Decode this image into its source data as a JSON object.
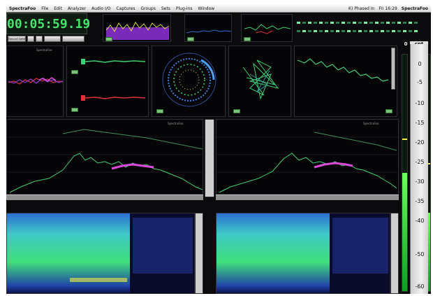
{
  "menubar": {
    "app_name": "SpectraFoo",
    "menu_items": [
      "File",
      "Edit",
      "Analyzer",
      "Audio I/O",
      "Captures",
      "Groups",
      "Sets",
      "Plug-ins",
      "Window"
    ],
    "status": "K) Phased In",
    "clock": "Fri 16:29",
    "app_badge": "SpectraFoo"
  },
  "transport": {
    "timecode": "00:05:59.19",
    "record_label": "Record Settings"
  },
  "panels": {
    "lissajous_title": "SpectraFoo",
    "spectrum_left_title": "SpectraFoo",
    "spectrum_right_title": "SpectraFoo"
  },
  "meters": {
    "left_header": "cnt",
    "right_header": "cfs",
    "left_value": "0",
    "right_value": "0",
    "scale": [
      "0",
      "-5",
      "-10",
      "-15",
      "-20",
      "-25",
      "-30",
      "-35",
      "-40",
      "-50",
      "-60"
    ],
    "left_level": 0.5,
    "right_level": 0.33
  },
  "colors": {
    "trace_green": "#3fcf74",
    "trace_magenta": "#d84bd9",
    "trace_red": "#e0303a",
    "timecode_green": "#46e46c"
  }
}
